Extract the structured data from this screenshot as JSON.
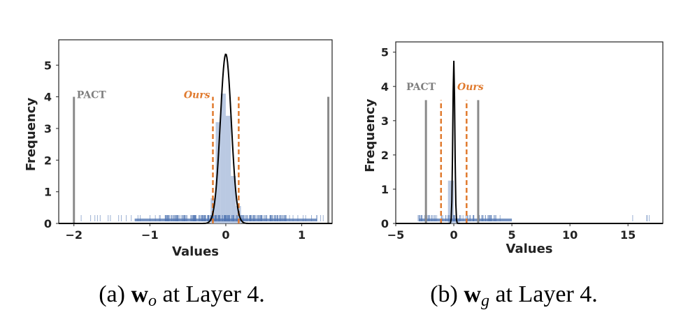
{
  "chart_data": [
    {
      "type": "histogram",
      "xlabel": "Values",
      "ylabel": "Frequency",
      "xlim": [
        -2.2,
        1.4
      ],
      "ylim": [
        0,
        5.8
      ],
      "xticks": [
        "-2",
        "-1",
        "0",
        "1"
      ],
      "yticks": [
        "0",
        "1",
        "2",
        "3",
        "4",
        "5"
      ],
      "bins": [
        {
          "x0": -0.2,
          "x1": -0.133,
          "count": 0.8
        },
        {
          "x0": -0.133,
          "x1": -0.067,
          "count": 3.2
        },
        {
          "x0": -0.067,
          "x1": 0.0,
          "count": 4.1
        },
        {
          "x0": 0.0,
          "x1": 0.067,
          "count": 3.4
        },
        {
          "x0": 0.067,
          "x1": 0.133,
          "count": 1.5
        },
        {
          "x0": 0.133,
          "x1": 0.2,
          "count": 0.55
        }
      ],
      "density_curve": {
        "mean": 0,
        "peak": 5.35,
        "sigma": 0.072
      },
      "rug_range": [
        -2.0,
        1.3
      ],
      "pact": {
        "label": "PACT",
        "lines": [
          -2.0,
          1.35
        ],
        "height": 4.0
      },
      "ours": {
        "label": "Ours",
        "lines": [
          -0.17,
          0.17
        ],
        "height": 4.0
      },
      "caption": {
        "prefix": "(a)",
        "var": "w",
        "sub": "o",
        "suffix": "at Layer 4."
      }
    },
    {
      "type": "histogram",
      "xlabel": "Values",
      "ylabel": "Frequency",
      "xlim": [
        -5,
        18
      ],
      "ylim": [
        0,
        5.3
      ],
      "xticks": [
        "-5",
        "0",
        "5",
        "10",
        "15"
      ],
      "yticks": [
        "0",
        "1",
        "2",
        "3",
        "4",
        "5"
      ],
      "bins": [
        {
          "x0": -0.5,
          "x1": 0.0,
          "count": 1.25
        },
        {
          "x0": 0.0,
          "x1": 0.5,
          "count": 0.15
        }
      ],
      "density_curve": {
        "mean": 0,
        "peak": 4.75,
        "sigma": 0.085
      },
      "rug_range": [
        -4.0,
        17.0
      ],
      "pact": {
        "label": "PACT",
        "lines": [
          -2.4,
          2.1
        ],
        "height": 3.6
      },
      "ours": {
        "label": "Ours",
        "lines": [
          -1.1,
          1.1
        ],
        "height": 3.6
      },
      "caption": {
        "prefix": "(b)",
        "var": "w",
        "sub": "g",
        "suffix": "at Layer 4."
      }
    }
  ],
  "colors": {
    "hist": "#aec0dd",
    "rug": "#4c72b0",
    "pact": "#8a8a8a",
    "ours": "#e07a2e",
    "curve": "#000000"
  }
}
